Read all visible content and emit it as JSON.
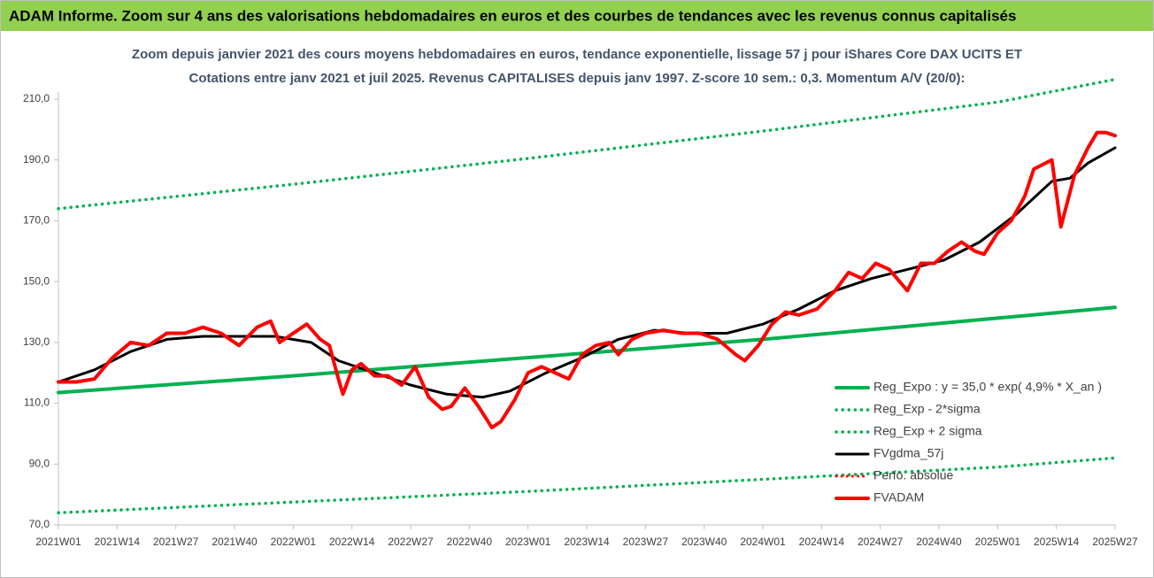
{
  "chart_data": {
    "type": "line",
    "title": "ADAM Informe. Zoom sur 4 ans des valorisations hebdomadaires en euros et des courbes de tendances avec les revenus connus capitalisés",
    "subtitle": [
      "Zoom depuis janvier 2021 des cours moyens hebdomadaires en euros, tendance exponentielle, lissage 57 j pour iShares Core DAX UCITS ET",
      "Cotations entre janv 2021 et juil 2025. Revenus CAPITALISES depuis janv 1997. Z-score 10 sem.: 0,3. Momentum A/V (20/0):"
    ],
    "xlim": [
      0,
      234
    ],
    "xticks": [
      {
        "value": 0,
        "label": "2021W01"
      },
      {
        "value": 13,
        "label": "2021W14"
      },
      {
        "value": 26,
        "label": "2021W27"
      },
      {
        "value": 39,
        "label": "2021W40"
      },
      {
        "value": 52,
        "label": "2022W01"
      },
      {
        "value": 65,
        "label": "2022W14"
      },
      {
        "value": 78,
        "label": "2022W27"
      },
      {
        "value": 91,
        "label": "2022W40"
      },
      {
        "value": 104,
        "label": "2023W01"
      },
      {
        "value": 117,
        "label": "2023W14"
      },
      {
        "value": 130,
        "label": "2023W27"
      },
      {
        "value": 143,
        "label": "2023W40"
      },
      {
        "value": 156,
        "label": "2024W01"
      },
      {
        "value": 169,
        "label": "2024W14"
      },
      {
        "value": 182,
        "label": "2024W27"
      },
      {
        "value": 195,
        "label": "2024W40"
      },
      {
        "value": 208,
        "label": "2025W01"
      },
      {
        "value": 221,
        "label": "2025W14"
      },
      {
        "value": 234,
        "label": "2025W27"
      }
    ],
    "ylim": [
      70,
      210
    ],
    "yticks": [
      {
        "value": 70,
        "label": "70,0"
      },
      {
        "value": 90,
        "label": "90,0"
      },
      {
        "value": 110,
        "label": "110,0"
      },
      {
        "value": 130,
        "label": "130,0"
      },
      {
        "value": 150,
        "label": "150,0"
      },
      {
        "value": 170,
        "label": "170,0"
      },
      {
        "value": 190,
        "label": "190,0"
      },
      {
        "value": 210,
        "label": "210,0"
      }
    ],
    "legend": "right",
    "series": [
      {
        "name": "Reg_Expo : y = 35,0 * exp( 4,9% *  X_an )",
        "color": "#00b050",
        "style": "solid",
        "width": 4,
        "x": [
          0,
          52,
          104,
          156,
          208,
          234
        ],
        "values": [
          113.5,
          119,
          125,
          131,
          138,
          141.5
        ]
      },
      {
        "name": "Reg_Exp - 2*sigma",
        "color": "#00b050",
        "style": "dotted",
        "width": 3.5,
        "x": [
          0,
          52,
          104,
          156,
          208,
          234
        ],
        "values": [
          74,
          77.5,
          81,
          85,
          89,
          92
        ]
      },
      {
        "name": "Reg_Exp + 2 sigma",
        "color": "#00b050",
        "style": "dotted",
        "width": 3.5,
        "x": [
          0,
          52,
          104,
          156,
          208,
          234
        ],
        "values": [
          174,
          182,
          190.5,
          199.5,
          209,
          216.5
        ]
      },
      {
        "name": "FVgdma_57j",
        "color": "#000000",
        "style": "solid",
        "width": 3,
        "x": [
          0,
          8,
          16,
          24,
          32,
          40,
          48,
          56,
          62,
          70,
          78,
          86,
          94,
          100,
          108,
          116,
          124,
          132,
          140,
          148,
          156,
          164,
          172,
          180,
          188,
          196,
          204,
          212,
          220,
          224,
          228,
          234
        ],
        "values": [
          117,
          121,
          127,
          131,
          132,
          132,
          132,
          130,
          124,
          120,
          116,
          113,
          112,
          114,
          120,
          125,
          131,
          134,
          133,
          133,
          136,
          141,
          147,
          151,
          154,
          157,
          163,
          172,
          183,
          184,
          189,
          194
        ]
      },
      {
        "name": "Perfo. absolue",
        "color": "#ff0000",
        "style": "dotted",
        "width": 3,
        "x": [],
        "values": []
      },
      {
        "name": "FVADAM",
        "color": "#ff0000",
        "style": "solid",
        "width": 4,
        "x": [
          0,
          4,
          8,
          12,
          16,
          20,
          24,
          28,
          32,
          36,
          40,
          44,
          47,
          49,
          51,
          55,
          58,
          60,
          62,
          63,
          65,
          67,
          70,
          73,
          76,
          79,
          82,
          85,
          87,
          90,
          93,
          96,
          98,
          101,
          104,
          107,
          110,
          113,
          116,
          119,
          122,
          124,
          127,
          130,
          134,
          138,
          142,
          146,
          150,
          152,
          155,
          158,
          161,
          164,
          168,
          172,
          175,
          178,
          181,
          184,
          188,
          191,
          194,
          197,
          200,
          203,
          205,
          208,
          211,
          214,
          216,
          220,
          222,
          225,
          228,
          230,
          232,
          234
        ],
        "values": [
          117,
          117,
          118,
          125,
          130,
          129,
          133,
          133,
          135,
          133,
          129,
          135,
          137,
          130,
          132,
          136,
          131,
          129,
          118,
          113,
          121,
          123,
          119,
          119,
          116,
          122,
          112,
          108,
          109,
          115,
          109,
          102,
          104,
          111,
          120,
          122,
          120,
          118,
          126,
          129,
          130,
          126,
          131,
          133,
          134,
          133,
          133,
          131,
          126,
          124,
          129,
          136,
          140,
          139,
          141,
          147,
          153,
          151,
          156,
          154,
          147,
          156,
          156,
          160,
          163,
          160,
          159,
          166,
          170,
          178,
          187,
          190,
          168,
          185,
          194,
          199,
          199,
          198
        ]
      }
    ]
  }
}
